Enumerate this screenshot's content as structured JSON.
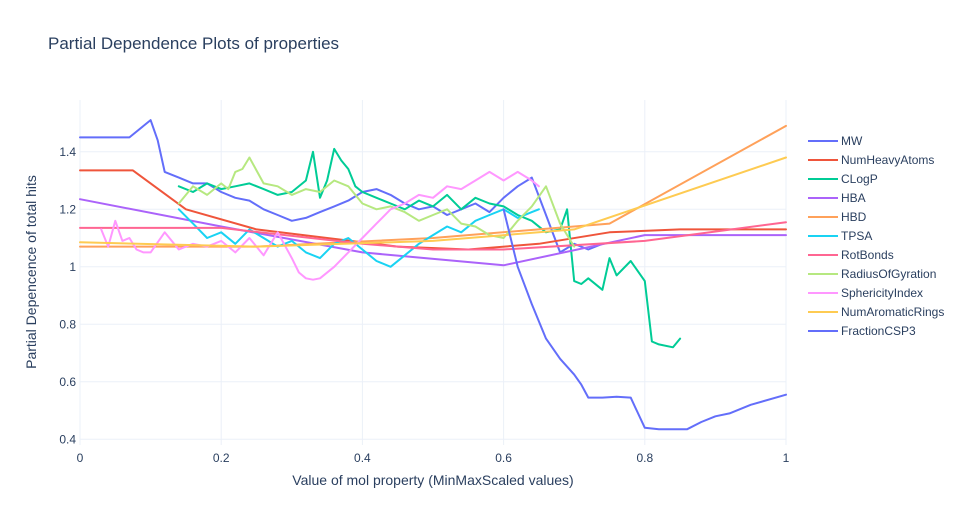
{
  "chart_data": {
    "type": "line",
    "title": "Partial Dependence Plots of properties",
    "xlabel": "Value of mol property (MinMaxScaled values)",
    "ylabel": "Partial Depencence of total hits",
    "xlim": [
      0,
      1
    ],
    "ylim": [
      0.38,
      1.58
    ],
    "xticks": [
      0,
      0.2,
      0.4,
      0.6,
      0.8,
      1
    ],
    "xtick_labels": [
      "0",
      "0.2",
      "0.4",
      "0.6",
      "0.8",
      "1"
    ],
    "yticks": [
      0.4,
      0.6,
      0.8,
      1.0,
      1.2,
      1.4
    ],
    "ytick_labels": [
      "0.4",
      "0.6",
      "0.8",
      "1",
      "1.2",
      "1.4"
    ],
    "grid": true,
    "legend_position": "right",
    "series": [
      {
        "name": "MW",
        "color": "#636efa",
        "x": [
          0.0,
          0.07,
          0.09,
          0.1,
          0.11,
          0.12,
          0.14,
          0.16,
          0.18,
          0.2,
          0.22,
          0.24,
          0.26,
          0.28,
          0.3,
          0.32,
          0.34,
          0.36,
          0.38,
          0.4,
          0.42,
          0.44,
          0.46,
          0.48,
          0.5,
          0.52,
          0.54,
          0.56,
          0.58,
          0.6,
          0.62,
          0.64,
          0.66,
          0.68,
          0.7,
          0.72,
          0.74
        ],
        "y": [
          1.45,
          1.45,
          1.49,
          1.51,
          1.44,
          1.33,
          1.31,
          1.29,
          1.29,
          1.26,
          1.24,
          1.23,
          1.2,
          1.18,
          1.16,
          1.17,
          1.19,
          1.21,
          1.23,
          1.26,
          1.27,
          1.25,
          1.22,
          1.2,
          1.21,
          1.18,
          1.2,
          1.22,
          1.19,
          1.24,
          1.28,
          1.31,
          1.18,
          1.05,
          1.08,
          1.06,
          1.08
        ]
      },
      {
        "name": "NumHeavyAtoms",
        "color": "#ef553b",
        "x": [
          0.0,
          0.075,
          0.15,
          0.25,
          0.35,
          0.45,
          0.55,
          0.65,
          0.75,
          0.85,
          1.0
        ],
        "y": [
          1.335,
          1.335,
          1.2,
          1.13,
          1.1,
          1.07,
          1.06,
          1.08,
          1.12,
          1.13,
          1.13
        ]
      },
      {
        "name": "CLogP",
        "color": "#00cc96",
        "x": [
          0.14,
          0.16,
          0.18,
          0.2,
          0.22,
          0.24,
          0.26,
          0.28,
          0.3,
          0.32,
          0.33,
          0.34,
          0.35,
          0.36,
          0.37,
          0.38,
          0.39,
          0.4,
          0.42,
          0.44,
          0.46,
          0.48,
          0.5,
          0.52,
          0.54,
          0.56,
          0.58,
          0.6,
          0.62,
          0.64,
          0.66,
          0.68,
          0.69,
          0.7,
          0.71,
          0.72,
          0.74,
          0.75,
          0.76,
          0.78,
          0.8,
          0.81,
          0.82,
          0.84,
          0.85
        ],
        "y": [
          1.28,
          1.26,
          1.29,
          1.27,
          1.28,
          1.29,
          1.27,
          1.25,
          1.26,
          1.3,
          1.4,
          1.24,
          1.3,
          1.41,
          1.37,
          1.34,
          1.28,
          1.26,
          1.24,
          1.22,
          1.2,
          1.23,
          1.21,
          1.25,
          1.2,
          1.24,
          1.22,
          1.21,
          1.18,
          1.16,
          1.12,
          1.13,
          1.2,
          0.95,
          0.94,
          0.96,
          0.92,
          1.03,
          0.97,
          1.02,
          0.95,
          0.74,
          0.73,
          0.72,
          0.75
        ]
      },
      {
        "name": "HBA",
        "color": "#ab63fa",
        "x": [
          0.0,
          0.2,
          0.4,
          0.6,
          0.8,
          1.0
        ],
        "y": [
          1.235,
          1.14,
          1.05,
          1.005,
          1.11,
          1.11
        ]
      },
      {
        "name": "HBD",
        "color": "#ffa15a",
        "x": [
          0.0,
          0.25,
          0.5,
          0.75,
          1.0
        ],
        "y": [
          1.07,
          1.07,
          1.1,
          1.15,
          1.49
        ]
      },
      {
        "name": "TPSA",
        "color": "#19d3f3",
        "x": [
          0.14,
          0.16,
          0.18,
          0.2,
          0.22,
          0.24,
          0.26,
          0.28,
          0.3,
          0.32,
          0.34,
          0.36,
          0.38,
          0.4,
          0.42,
          0.44,
          0.46,
          0.48,
          0.5,
          0.52,
          0.54,
          0.56,
          0.58,
          0.6,
          0.62,
          0.64,
          0.65
        ],
        "y": [
          1.2,
          1.15,
          1.1,
          1.12,
          1.08,
          1.13,
          1.1,
          1.07,
          1.09,
          1.05,
          1.03,
          1.08,
          1.1,
          1.06,
          1.02,
          1.0,
          1.04,
          1.08,
          1.11,
          1.14,
          1.12,
          1.16,
          1.18,
          1.2,
          1.17,
          1.19,
          1.2
        ]
      },
      {
        "name": "RotBonds",
        "color": "#ff6692",
        "x": [
          0.0,
          0.2,
          0.4,
          0.5,
          0.6,
          0.8,
          1.0
        ],
        "y": [
          1.135,
          1.135,
          1.08,
          1.06,
          1.06,
          1.09,
          1.155
        ]
      },
      {
        "name": "RadiusOfGyration",
        "color": "#b6e880",
        "x": [
          0.14,
          0.16,
          0.18,
          0.2,
          0.21,
          0.22,
          0.23,
          0.24,
          0.26,
          0.28,
          0.3,
          0.32,
          0.34,
          0.36,
          0.38,
          0.4,
          0.42,
          0.44,
          0.46,
          0.48,
          0.5,
          0.52,
          0.54,
          0.56,
          0.58,
          0.6,
          0.62,
          0.64,
          0.66,
          0.68,
          0.7
        ],
        "y": [
          1.22,
          1.28,
          1.25,
          1.29,
          1.27,
          1.33,
          1.34,
          1.38,
          1.29,
          1.28,
          1.25,
          1.27,
          1.26,
          1.3,
          1.28,
          1.22,
          1.2,
          1.21,
          1.19,
          1.16,
          1.18,
          1.2,
          1.15,
          1.14,
          1.11,
          1.1,
          1.16,
          1.21,
          1.28,
          1.15,
          1.07
        ]
      },
      {
        "name": "SphericityIndex",
        "color": "#ff97ff",
        "x": [
          0.03,
          0.04,
          0.05,
          0.06,
          0.07,
          0.08,
          0.09,
          0.1,
          0.12,
          0.14,
          0.16,
          0.18,
          0.2,
          0.22,
          0.24,
          0.26,
          0.28,
          0.3,
          0.31,
          0.32,
          0.33,
          0.34,
          0.36,
          0.38,
          0.4,
          0.42,
          0.44,
          0.46,
          0.48,
          0.5,
          0.52,
          0.54,
          0.56,
          0.58,
          0.6,
          0.62,
          0.64,
          0.65
        ],
        "y": [
          1.13,
          1.07,
          1.16,
          1.09,
          1.1,
          1.06,
          1.05,
          1.05,
          1.12,
          1.06,
          1.08,
          1.07,
          1.09,
          1.05,
          1.1,
          1.04,
          1.12,
          1.03,
          0.98,
          0.96,
          0.955,
          0.96,
          1.0,
          1.05,
          1.1,
          1.15,
          1.2,
          1.22,
          1.25,
          1.24,
          1.28,
          1.27,
          1.3,
          1.33,
          1.3,
          1.33,
          1.3,
          1.28
        ]
      },
      {
        "name": "NumAromaticRings",
        "color": "#fecb52",
        "x": [
          0.0,
          0.25,
          0.5,
          0.7,
          1.0
        ],
        "y": [
          1.085,
          1.07,
          1.09,
          1.13,
          1.38
        ]
      },
      {
        "name": "FractionCSP3",
        "color": "#636efa",
        "x": [
          0.6,
          0.62,
          0.64,
          0.66,
          0.68,
          0.7,
          0.71,
          0.72,
          0.74,
          0.76,
          0.78,
          0.8,
          0.82,
          0.84,
          0.86,
          0.88,
          0.9,
          0.92,
          0.95,
          1.0
        ],
        "y": [
          1.2,
          1.0,
          0.87,
          0.75,
          0.68,
          0.625,
          0.59,
          0.545,
          0.545,
          0.548,
          0.545,
          0.44,
          0.435,
          0.435,
          0.435,
          0.46,
          0.48,
          0.49,
          0.52,
          0.555
        ]
      }
    ]
  }
}
